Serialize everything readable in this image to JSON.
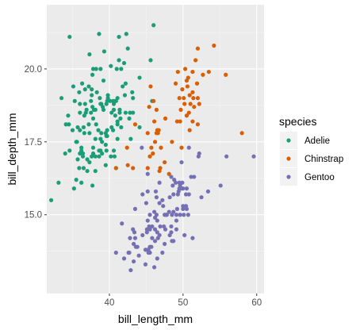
{
  "chart_data": {
    "type": "scatter",
    "title": "",
    "xlabel": "bill_length_mm",
    "ylabel": "bill_depth_mm",
    "xlim": [
      31.5,
      61.0
    ],
    "ylim": [
      12.3,
      22.2
    ],
    "x_ticks": [
      40,
      50,
      60
    ],
    "y_ticks": [
      15.0,
      17.5,
      20.0
    ],
    "x_tick_labels": [
      "40",
      "50",
      "60"
    ],
    "y_tick_labels": [
      "15.0",
      "17.5",
      "20.0"
    ],
    "grid": true,
    "legend": {
      "title": "species",
      "position": "right"
    },
    "series": [
      {
        "name": "Adelie",
        "color": "#1b9e77",
        "points": [
          [
            32.1,
            15.5
          ],
          [
            33.1,
            16.1
          ],
          [
            33.5,
            19.0
          ],
          [
            34.0,
            17.1
          ],
          [
            34.1,
            18.1
          ],
          [
            34.4,
            18.4
          ],
          [
            34.5,
            18.1
          ],
          [
            34.6,
            21.1
          ],
          [
            34.6,
            17.2
          ],
          [
            35.0,
            17.9
          ],
          [
            35.1,
            19.4
          ],
          [
            35.2,
            15.9
          ],
          [
            35.3,
            18.9
          ],
          [
            35.5,
            17.5
          ],
          [
            35.5,
            16.2
          ],
          [
            35.6,
            17.5
          ],
          [
            35.7,
            16.9
          ],
          [
            35.7,
            18.0
          ],
          [
            35.9,
            19.2
          ],
          [
            35.9,
            16.6
          ],
          [
            36.0,
            18.5
          ],
          [
            36.0,
            17.9
          ],
          [
            36.0,
            17.1
          ],
          [
            36.0,
            18.8
          ],
          [
            36.2,
            17.2
          ],
          [
            36.2,
            16.1
          ],
          [
            36.2,
            17.3
          ],
          [
            36.3,
            19.5
          ],
          [
            36.4,
            17.0
          ],
          [
            36.4,
            17.1
          ],
          [
            36.5,
            18.0
          ],
          [
            36.5,
            16.6
          ],
          [
            36.6,
            17.8
          ],
          [
            36.6,
            18.4
          ],
          [
            36.7,
            19.3
          ],
          [
            36.7,
            18.8
          ],
          [
            36.8,
            18.5
          ],
          [
            36.9,
            18.6
          ],
          [
            37.0,
            16.9
          ],
          [
            37.0,
            16.5
          ],
          [
            37.2,
            18.1
          ],
          [
            37.2,
            19.4
          ],
          [
            37.3,
            20.5
          ],
          [
            37.3,
            17.8
          ],
          [
            37.3,
            16.8
          ],
          [
            37.5,
            18.9
          ],
          [
            37.5,
            18.5
          ],
          [
            37.6,
            19.1
          ],
          [
            37.6,
            17.0
          ],
          [
            37.6,
            19.3
          ],
          [
            37.7,
            18.7
          ],
          [
            37.7,
            16.0
          ],
          [
            37.7,
            19.8
          ],
          [
            37.8,
            18.3
          ],
          [
            37.8,
            17.1
          ],
          [
            37.8,
            17.3
          ],
          [
            37.8,
            20.0
          ],
          [
            37.9,
            18.6
          ],
          [
            38.1,
            18.6
          ],
          [
            38.1,
            17.6
          ],
          [
            38.1,
            17.0
          ],
          [
            38.1,
            16.5
          ],
          [
            38.2,
            18.1
          ],
          [
            38.2,
            20.0
          ],
          [
            38.3,
            19.2
          ],
          [
            38.5,
            17.9
          ],
          [
            38.6,
            21.2
          ],
          [
            38.6,
            17.2
          ],
          [
            38.6,
            17.0
          ],
          [
            38.7,
            19.0
          ],
          [
            38.8,
            17.2
          ],
          [
            38.8,
            18.8
          ],
          [
            38.8,
            17.6
          ],
          [
            38.8,
            20.0
          ],
          [
            38.9,
            17.8
          ],
          [
            38.9,
            18.8
          ],
          [
            39.0,
            17.1
          ],
          [
            39.0,
            17.5
          ],
          [
            39.1,
            18.7
          ],
          [
            39.2,
            19.6
          ],
          [
            39.2,
            18.6
          ],
          [
            39.3,
            20.6
          ],
          [
            39.5,
            17.4
          ],
          [
            39.5,
            16.7
          ],
          [
            39.5,
            17.8
          ],
          [
            39.6,
            17.7
          ],
          [
            39.6,
            18.8
          ],
          [
            39.6,
            17.2
          ],
          [
            39.7,
            17.7
          ],
          [
            39.7,
            18.9
          ],
          [
            39.7,
            17.9
          ],
          [
            39.8,
            19.1
          ],
          [
            39.8,
            19.0
          ],
          [
            40.1,
            18.9
          ],
          [
            40.2,
            17.0
          ],
          [
            40.2,
            20.1
          ],
          [
            40.3,
            18.0
          ],
          [
            40.3,
            18.5
          ],
          [
            40.5,
            17.9
          ],
          [
            40.5,
            18.9
          ],
          [
            40.6,
            18.6
          ],
          [
            40.6,
            17.2
          ],
          [
            40.6,
            18.8
          ],
          [
            40.7,
            17.0
          ],
          [
            40.8,
            18.4
          ],
          [
            40.8,
            18.9
          ],
          [
            40.9,
            18.9
          ],
          [
            40.9,
            16.6
          ],
          [
            41.0,
            20.0
          ],
          [
            41.1,
            17.6
          ],
          [
            41.1,
            19.0
          ],
          [
            41.1,
            18.2
          ],
          [
            41.1,
            18.1
          ],
          [
            41.3,
            20.3
          ],
          [
            41.3,
            21.1
          ],
          [
            41.4,
            18.6
          ],
          [
            41.4,
            18.5
          ],
          [
            41.5,
            18.3
          ],
          [
            41.6,
            18.0
          ],
          [
            41.6,
            20.0
          ],
          [
            41.8,
            19.4
          ],
          [
            42.0,
            20.2
          ],
          [
            42.1,
            19.1
          ],
          [
            42.2,
            18.5
          ],
          [
            42.2,
            19.5
          ],
          [
            42.3,
            21.2
          ],
          [
            42.5,
            20.7
          ],
          [
            42.7,
            18.3
          ],
          [
            42.8,
            18.5
          ],
          [
            42.9,
            17.6
          ],
          [
            43.1,
            19.2
          ],
          [
            43.2,
            19.0
          ],
          [
            43.2,
            18.5
          ],
          [
            44.1,
            19.7
          ],
          [
            44.1,
            18.0
          ],
          [
            45.6,
            20.3
          ],
          [
            45.8,
            18.9
          ],
          [
            46.0,
            21.5
          ]
        ]
      },
      {
        "name": "Chinstrap",
        "color": "#d95f02",
        "points": [
          [
            40.9,
            16.6
          ],
          [
            42.4,
            17.3
          ],
          [
            42.5,
            16.7
          ],
          [
            43.2,
            16.6
          ],
          [
            43.5,
            18.1
          ],
          [
            45.2,
            17.8
          ],
          [
            45.2,
            16.6
          ],
          [
            45.4,
            18.7
          ],
          [
            45.5,
            17.0
          ],
          [
            45.6,
            19.4
          ],
          [
            45.7,
            17.3
          ],
          [
            45.9,
            17.1
          ],
          [
            46.0,
            18.9
          ],
          [
            46.1,
            18.2
          ],
          [
            46.2,
            17.5
          ],
          [
            46.4,
            18.6
          ],
          [
            46.4,
            17.8
          ],
          [
            46.5,
            17.9
          ],
          [
            46.6,
            17.8
          ],
          [
            46.7,
            17.9
          ],
          [
            46.8,
            16.5
          ],
          [
            46.9,
            16.6
          ],
          [
            47.0,
            17.3
          ],
          [
            47.5,
            16.8
          ],
          [
            47.6,
            18.3
          ],
          [
            48.1,
            16.4
          ],
          [
            48.5,
            17.5
          ],
          [
            49.0,
            19.5
          ],
          [
            49.2,
            18.2
          ],
          [
            49.3,
            19.9
          ],
          [
            49.5,
            19.0
          ],
          [
            49.6,
            18.2
          ],
          [
            49.7,
            18.6
          ],
          [
            49.8,
            17.3
          ],
          [
            49.9,
            19.3
          ],
          [
            50.1,
            19.0
          ],
          [
            50.2,
            18.8
          ],
          [
            50.3,
            20.0
          ],
          [
            50.5,
            18.4
          ],
          [
            50.5,
            19.6
          ],
          [
            50.6,
            19.4
          ],
          [
            50.7,
            19.7
          ],
          [
            50.8,
            18.5
          ],
          [
            50.9,
            17.9
          ],
          [
            50.9,
            19.1
          ],
          [
            51.0,
            18.8
          ],
          [
            51.3,
            19.2
          ],
          [
            51.3,
            18.2
          ],
          [
            51.3,
            19.9
          ],
          [
            51.4,
            19.0
          ],
          [
            51.5,
            18.7
          ],
          [
            51.7,
            20.3
          ],
          [
            51.9,
            19.5
          ],
          [
            52.0,
            18.1
          ],
          [
            52.0,
            19.0
          ],
          [
            52.0,
            20.7
          ],
          [
            52.2,
            18.8
          ],
          [
            52.7,
            19.8
          ],
          [
            53.5,
            19.9
          ],
          [
            54.2,
            20.8
          ],
          [
            55.8,
            19.8
          ],
          [
            58.0,
            17.8
          ]
        ]
      },
      {
        "name": "Gentoo",
        "color": "#7570b3",
        "points": [
          [
            40.9,
            13.7
          ],
          [
            41.7,
            14.7
          ],
          [
            42.0,
            13.5
          ],
          [
            42.6,
            13.7
          ],
          [
            42.7,
            13.7
          ],
          [
            42.8,
            14.2
          ],
          [
            42.9,
            13.1
          ],
          [
            43.2,
            14.5
          ],
          [
            43.3,
            13.4
          ],
          [
            43.3,
            14.0
          ],
          [
            43.4,
            14.4
          ],
          [
            43.5,
            14.2
          ],
          [
            43.5,
            15.2
          ],
          [
            43.6,
            13.9
          ],
          [
            43.8,
            13.9
          ],
          [
            44.0,
            13.6
          ],
          [
            44.4,
            17.3
          ],
          [
            44.5,
            14.3
          ],
          [
            44.5,
            15.7
          ],
          [
            44.9,
            13.3
          ],
          [
            44.9,
            13.8
          ],
          [
            45.0,
            15.4
          ],
          [
            45.1,
            14.5
          ],
          [
            45.1,
            14.4
          ],
          [
            45.2,
            13.8
          ],
          [
            45.2,
            14.8
          ],
          [
            45.2,
            16.4
          ],
          [
            45.2,
            15.8
          ],
          [
            45.3,
            13.7
          ],
          [
            45.3,
            13.8
          ],
          [
            45.4,
            14.6
          ],
          [
            45.5,
            13.7
          ],
          [
            45.5,
            13.9
          ],
          [
            45.5,
            15.0
          ],
          [
            45.5,
            14.5
          ],
          [
            45.7,
            13.9
          ],
          [
            45.8,
            14.2
          ],
          [
            45.8,
            14.6
          ],
          [
            46.1,
            13.2
          ],
          [
            46.1,
            15.1
          ],
          [
            46.2,
            14.5
          ],
          [
            46.2,
            14.9
          ],
          [
            46.2,
            14.1
          ],
          [
            46.3,
            15.8
          ],
          [
            46.4,
            15.0
          ],
          [
            46.4,
            15.6
          ],
          [
            46.5,
            13.5
          ],
          [
            46.5,
            14.4
          ],
          [
            46.5,
            14.8
          ],
          [
            46.6,
            14.2
          ],
          [
            46.8,
            15.4
          ],
          [
            46.8,
            14.3
          ],
          [
            46.8,
            16.1
          ],
          [
            46.9,
            14.6
          ],
          [
            47.2,
            13.7
          ],
          [
            47.2,
            15.5
          ],
          [
            47.3,
            15.3
          ],
          [
            47.4,
            14.6
          ],
          [
            47.5,
            14.0
          ],
          [
            47.5,
            15.0
          ],
          [
            47.6,
            14.5
          ],
          [
            47.7,
            15.0
          ],
          [
            47.8,
            15.0
          ],
          [
            48.1,
            15.1
          ],
          [
            48.2,
            14.3
          ],
          [
            48.2,
            15.6
          ],
          [
            48.4,
            14.4
          ],
          [
            48.4,
            14.6
          ],
          [
            48.4,
            16.3
          ],
          [
            48.5,
            14.1
          ],
          [
            48.5,
            15.0
          ],
          [
            48.6,
            16.0
          ],
          [
            48.7,
            14.1
          ],
          [
            48.7,
            15.1
          ],
          [
            48.7,
            15.7
          ],
          [
            48.8,
            16.2
          ],
          [
            49.0,
            16.1
          ],
          [
            49.1,
            14.5
          ],
          [
            49.1,
            14.8
          ],
          [
            49.1,
            15.0
          ],
          [
            49.2,
            15.2
          ],
          [
            49.3,
            15.7
          ],
          [
            49.4,
            15.8
          ],
          [
            49.5,
            15.9
          ],
          [
            49.5,
            16.1
          ],
          [
            49.6,
            15.0
          ],
          [
            49.6,
            16.0
          ],
          [
            49.8,
            15.9
          ],
          [
            49.8,
            16.8
          ],
          [
            49.9,
            16.1
          ],
          [
            50.0,
            15.2
          ],
          [
            50.0,
            15.3
          ],
          [
            50.0,
            15.9
          ],
          [
            50.1,
            15.0
          ],
          [
            50.2,
            14.3
          ],
          [
            50.4,
            15.3
          ],
          [
            50.4,
            15.7
          ],
          [
            50.5,
            15.2
          ],
          [
            50.5,
            15.9
          ],
          [
            50.7,
            15.0
          ],
          [
            50.8,
            15.7
          ],
          [
            50.8,
            17.3
          ],
          [
            51.1,
            16.3
          ],
          [
            51.3,
            14.2
          ],
          [
            51.5,
            16.3
          ],
          [
            52.1,
            17.0
          ],
          [
            52.2,
            17.1
          ],
          [
            52.5,
            15.6
          ],
          [
            53.4,
            15.8
          ],
          [
            55.1,
            16.0
          ],
          [
            55.9,
            17.0
          ],
          [
            59.6,
            17.0
          ]
        ]
      }
    ]
  }
}
